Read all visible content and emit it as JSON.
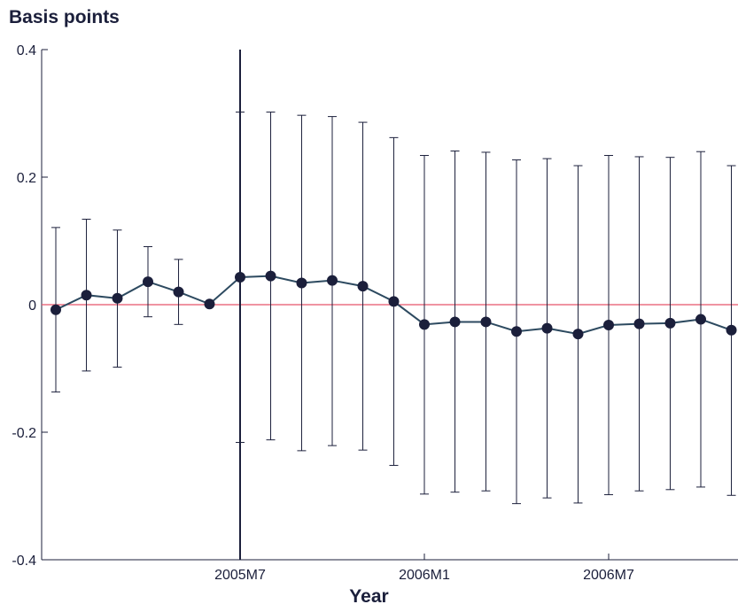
{
  "chart_data": {
    "type": "line",
    "ylabel": "Basis points",
    "xlabel": "Year",
    "ylim": [
      -0.4,
      0.4
    ],
    "yticks": [
      -0.4,
      -0.2,
      0,
      0.2,
      0.4
    ],
    "ytick_labels": [
      "-0.4",
      "-0.2",
      "0",
      "0.2",
      "0.4"
    ],
    "xlim": [
      2005.0,
      2007.25
    ],
    "xticks": [
      {
        "x": 2005.5,
        "label": "2005M7"
      },
      {
        "x": 2006.0,
        "label": "2006M1"
      },
      {
        "x": 2006.5,
        "label": "2006M7"
      }
    ],
    "vertical_line_x": 2005.5,
    "zero_line_color": "#e8556a",
    "series_color": "#1b1f3b",
    "line_color": "#2d4a60",
    "series": [
      {
        "x": [
          2005.0,
          2005.083,
          2005.167,
          2005.25,
          2005.333,
          2005.417,
          2005.5,
          2005.583,
          2005.667,
          2005.75,
          2005.833,
          2005.917,
          2006.0,
          2006.083,
          2006.167,
          2006.25,
          2006.333,
          2006.417,
          2006.5,
          2006.583,
          2006.667,
          2006.75,
          2006.833
        ],
        "y": [
          -0.008,
          0.015,
          0.01,
          0.036,
          0.02,
          0.001,
          0.043,
          0.045,
          0.034,
          0.038,
          0.029,
          0.005,
          -0.031,
          -0.027,
          -0.027,
          -0.042,
          -0.037,
          -0.046,
          -0.032,
          -0.03,
          -0.029,
          -0.023,
          -0.04
        ],
        "lower": [
          -0.137,
          -0.104,
          -0.098,
          -0.019,
          -0.031,
          null,
          -0.216,
          -0.212,
          -0.229,
          -0.221,
          -0.228,
          -0.252,
          -0.297,
          -0.294,
          -0.292,
          -0.312,
          -0.303,
          -0.311,
          -0.298,
          -0.292,
          -0.29,
          -0.286,
          -0.299
        ],
        "upper": [
          0.121,
          0.134,
          0.117,
          0.091,
          0.071,
          null,
          0.302,
          0.302,
          0.297,
          0.295,
          0.286,
          0.262,
          0.234,
          0.241,
          0.239,
          0.227,
          0.229,
          0.218,
          0.234,
          0.232,
          0.231,
          0.24,
          0.218
        ]
      }
    ]
  }
}
